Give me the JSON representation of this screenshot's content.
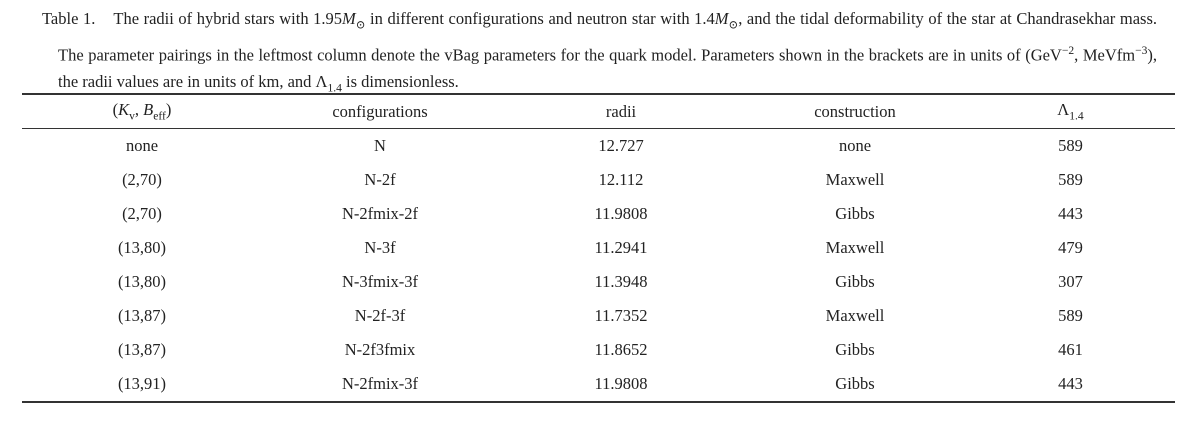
{
  "caption": {
    "label": "Table 1.",
    "segments": [
      {
        "text": "The radii of hybrid stars with 1.95"
      },
      {
        "text": "M",
        "style": "italic"
      },
      {
        "text": "⊙",
        "style": "sub"
      },
      {
        "text": " in different configurations and neutron star with 1.4"
      },
      {
        "text": "M",
        "style": "italic"
      },
      {
        "text": "⊙",
        "style": "sub"
      },
      {
        "text": ", and the tidal deformability of the star at Chandrasekhar mass. The parameter pairings in the leftmost column denote the vBag parameters for the quark model. Parameters shown in the brackets are in units of (GeV"
      },
      {
        "text": "−2",
        "style": "sup"
      },
      {
        "text": ", MeVfm"
      },
      {
        "text": "−3",
        "style": "sup"
      },
      {
        "text": "), the radii values are in units of km, and Λ"
      },
      {
        "text": "1.4",
        "style": "sub"
      },
      {
        "text": " is dimensionless."
      }
    ]
  },
  "table": {
    "headers": [
      [
        {
          "text": "("
        },
        {
          "text": "K",
          "style": "italic"
        },
        {
          "text": "v",
          "style": "sub"
        },
        {
          "text": ", "
        },
        {
          "text": "B",
          "style": "italic"
        },
        {
          "text": "eff",
          "style": "sub"
        },
        {
          "text": ")"
        }
      ],
      [
        {
          "text": "configurations"
        }
      ],
      [
        {
          "text": "radii"
        }
      ],
      [
        {
          "text": "construction"
        }
      ],
      [
        {
          "text": "Λ"
        },
        {
          "text": "1.4",
          "style": "sub"
        }
      ]
    ],
    "rows": [
      [
        "none",
        "N",
        "12.727",
        "none",
        "589"
      ],
      [
        "(2,70)",
        "N-2f",
        "12.112",
        "Maxwell",
        "589"
      ],
      [
        "(2,70)",
        "N-2fmix-2f",
        "11.9808",
        "Gibbs",
        "443"
      ],
      [
        "(13,80)",
        "N-3f",
        "11.2941",
        "Maxwell",
        "479"
      ],
      [
        "(13,80)",
        "N-3fmix-3f",
        "11.3948",
        "Gibbs",
        "307"
      ],
      [
        "(13,87)",
        "N-2f-3f",
        "11.7352",
        "Maxwell",
        "589"
      ],
      [
        "(13,87)",
        "N-2f3fmix",
        "11.8652",
        "Gibbs",
        "461"
      ],
      [
        "(13,91)",
        "N-2fmix-3f",
        "11.9808",
        "Gibbs",
        "443"
      ]
    ]
  }
}
